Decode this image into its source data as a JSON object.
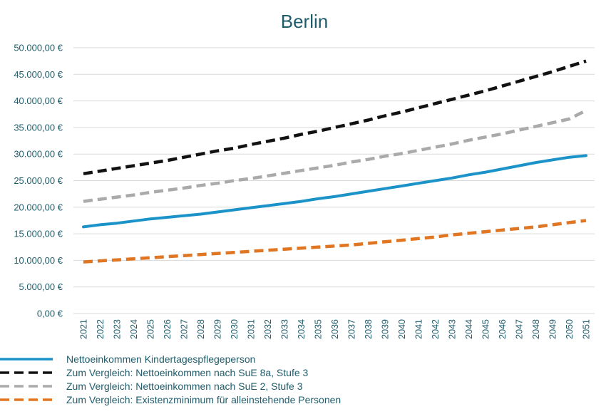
{
  "chart_data": {
    "type": "line",
    "title": "Berlin",
    "xlabel": "",
    "ylabel": "",
    "ylim": [
      0,
      50000
    ],
    "yticks": [
      0,
      5000,
      10000,
      15000,
      20000,
      25000,
      30000,
      35000,
      40000,
      45000,
      50000
    ],
    "ytick_labels": [
      "0,00 €",
      "5.000,00 €",
      "10.000,00 €",
      "15.000,00 €",
      "20.000,00 €",
      "25.000,00 €",
      "30.000,00 €",
      "35.000,00 €",
      "40.000,00 €",
      "45.000,00 €",
      "50.000,00 €"
    ],
    "grid": true,
    "legend_position": "bottom-left",
    "x": [
      "2021",
      "2022",
      "2023",
      "2024",
      "2025",
      "2026",
      "2027",
      "2028",
      "2029",
      "2030",
      "2031",
      "2032",
      "2033",
      "2034",
      "2035",
      "2036",
      "2037",
      "2038",
      "2039",
      "2040",
      "2041",
      "2042",
      "2043",
      "2044",
      "2045",
      "2046",
      "2047",
      "2048",
      "2049",
      "2050",
      "2051"
    ],
    "series": [
      {
        "name": "Nettoeinkommen Kindertagespflegeperson",
        "color": "#1b93c8",
        "dash": "solid",
        "values": [
          16300,
          16700,
          17000,
          17400,
          17800,
          18100,
          18400,
          18700,
          19100,
          19500,
          19900,
          20300,
          20700,
          21100,
          21600,
          22000,
          22500,
          23000,
          23500,
          24000,
          24500,
          25000,
          25500,
          26100,
          26600,
          27200,
          27800,
          28400,
          28900,
          29400,
          29700
        ]
      },
      {
        "name": "Zum Vergleich: Nettoeinkommen nach SuE 8a, Stufe 3",
        "color": "#111111",
        "dash": "dashed",
        "values": [
          26300,
          26800,
          27300,
          27800,
          28300,
          28800,
          29400,
          30000,
          30600,
          31100,
          31800,
          32400,
          33000,
          33700,
          34300,
          35000,
          35700,
          36400,
          37200,
          37900,
          38700,
          39500,
          40300,
          41100,
          41900,
          42800,
          43700,
          44600,
          45500,
          46500,
          47500
        ]
      },
      {
        "name": "Zum Vergleich: Nettoeinkommen nach SuE 2, Stufe 3",
        "color": "#aaaaaa",
        "dash": "dashed",
        "values": [
          21100,
          21500,
          21900,
          22300,
          22800,
          23200,
          23600,
          24100,
          24500,
          25000,
          25400,
          25900,
          26400,
          26900,
          27400,
          27900,
          28500,
          29000,
          29600,
          30100,
          30700,
          31300,
          31900,
          32600,
          33200,
          33800,
          34500,
          35200,
          35900,
          36600,
          38200
        ]
      },
      {
        "name": "Zum Vergleich: Existenzminimum für alleinstehende Personen",
        "color": "#e07522",
        "dash": "dashed",
        "values": [
          9700,
          9900,
          10100,
          10300,
          10500,
          10700,
          10900,
          11100,
          11300,
          11500,
          11700,
          11900,
          12100,
          12300,
          12500,
          12700,
          12900,
          13200,
          13500,
          13800,
          14100,
          14400,
          14800,
          15100,
          15400,
          15700,
          16000,
          16300,
          16700,
          17100,
          17500
        ]
      }
    ]
  }
}
